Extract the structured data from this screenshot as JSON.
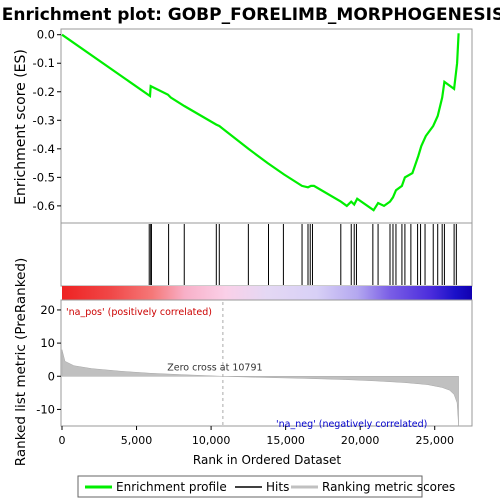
{
  "chart_data": {
    "type": "line",
    "title": "Enrichment plot: GOBP_FORELIMB_MORPHOGENESIS",
    "top_panel": {
      "ylabel": "Enrichment score (ES)",
      "ylim": [
        -0.66,
        0.02
      ],
      "yticks": [
        0.0,
        -0.1,
        -0.2,
        -0.3,
        -0.4,
        -0.5,
        -0.6
      ],
      "ytick_labels": [
        "0.0",
        "-0.1",
        "-0.2",
        "-0.3",
        "-0.4",
        "-0.5",
        "-0.6"
      ],
      "series": [
        {
          "name": "Enrichment profile",
          "color": "#00ee00",
          "x": [
            0,
            5900,
            5950,
            7100,
            7300,
            8200,
            10350,
            10550,
            12500,
            13800,
            14900,
            16100,
            16500,
            16700,
            16900,
            18700,
            19100,
            19400,
            19600,
            19800,
            20900,
            21200,
            21600,
            22000,
            22200,
            22400,
            22800,
            23000,
            23500,
            23900,
            24100,
            24400,
            24900,
            25200,
            25500,
            25650,
            26300,
            26500,
            26600
          ],
          "y": [
            0.0,
            -0.215,
            -0.18,
            -0.21,
            -0.22,
            -0.25,
            -0.315,
            -0.32,
            -0.4,
            -0.45,
            -0.49,
            -0.53,
            -0.535,
            -0.53,
            -0.53,
            -0.585,
            -0.6,
            -0.585,
            -0.595,
            -0.575,
            -0.615,
            -0.59,
            -0.6,
            -0.585,
            -0.57,
            -0.545,
            -0.53,
            -0.5,
            -0.485,
            -0.425,
            -0.39,
            -0.355,
            -0.32,
            -0.285,
            -0.22,
            -0.165,
            -0.19,
            -0.1,
            0.005
          ]
        }
      ]
    },
    "hits_panel": {
      "hit_positions": [
        5850,
        5950,
        6000,
        7150,
        8200,
        10350,
        10550,
        12500,
        13850,
        14850,
        16100,
        16500,
        16650,
        16800,
        18700,
        19400,
        19600,
        19750,
        20850,
        21200,
        22000,
        22200,
        22400,
        22800,
        23000,
        23400,
        23850,
        24050,
        24350,
        24900,
        25200,
        25500,
        25650,
        26300,
        26450
      ]
    },
    "bottom_panel": {
      "ylabel": "Ranked list metric (PreRanked)",
      "xlabel": "Rank in Ordered Dataset",
      "xlim": [
        0,
        27500
      ],
      "ylim": [
        -15,
        23
      ],
      "xticks": [
        0,
        5000,
        10000,
        15000,
        20000,
        25000
      ],
      "xtick_labels": [
        "0",
        "5,000",
        "10,000",
        "15,000",
        "20,000",
        "25,000"
      ],
      "yticks": [
        20,
        10,
        0,
        -10
      ],
      "ytick_labels": [
        "20",
        "10",
        "0",
        "-10"
      ],
      "metric_curve": {
        "x": [
          0,
          200,
          800,
          2000,
          4000,
          6000,
          8000,
          10791,
          13000,
          16000,
          19000,
          21000,
          23000,
          24500,
          25500,
          26000,
          26300,
          26500,
          26600
        ],
        "y": [
          8,
          4.5,
          3.2,
          2.3,
          1.5,
          0.9,
          0.5,
          0,
          -0.3,
          -0.6,
          -1.0,
          -1.4,
          -1.9,
          -2.5,
          -3.4,
          -4.2,
          -5.5,
          -8,
          -15
        ]
      },
      "zero_cross_label": "Zero cross at 10791",
      "zero_cross": 10791,
      "pos_label": "'na_pos' (positively correlated)",
      "neg_label": "'na_neg' (negatively correlated)"
    },
    "legend": {
      "items": [
        {
          "label": "Enrichment profile",
          "color": "#00ee00"
        },
        {
          "label": "Hits",
          "color": "#000000"
        },
        {
          "label": "Ranking metric scores",
          "color": "#c0c0c0"
        }
      ]
    },
    "colors": {
      "profile": "#00ee00",
      "pos_label": "#cc0000",
      "neg_label": "#0000cc",
      "metric_fill": "#c0c0c0"
    }
  }
}
